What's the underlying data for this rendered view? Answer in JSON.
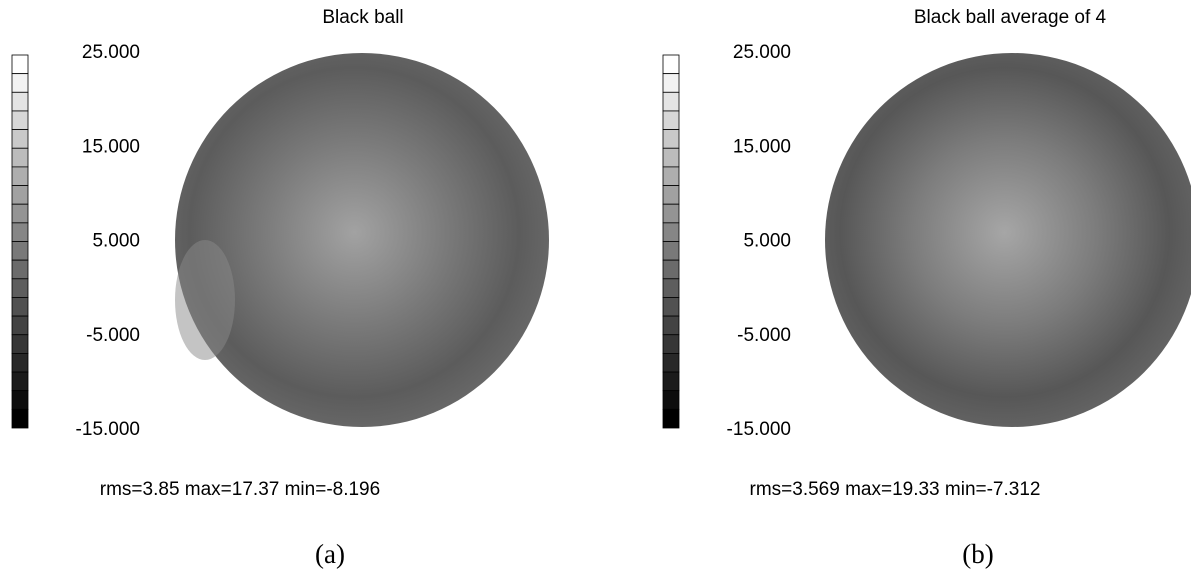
{
  "panels": [
    {
      "title": "Black ball",
      "colorbar_labels": [
        "25.000",
        "15.000",
        "5.000",
        "-5.000",
        "-15.000"
      ],
      "stats": "rms=3.85 max=17.37 min=-8.196",
      "caption": "(a)"
    },
    {
      "title": "Black ball average of 4",
      "colorbar_labels": [
        "25.000",
        "15.000",
        "5.000",
        "-5.000",
        "-15.000"
      ],
      "stats": "rms=3.569 max=19.33 min=-7.312",
      "caption": "(b)"
    }
  ]
}
